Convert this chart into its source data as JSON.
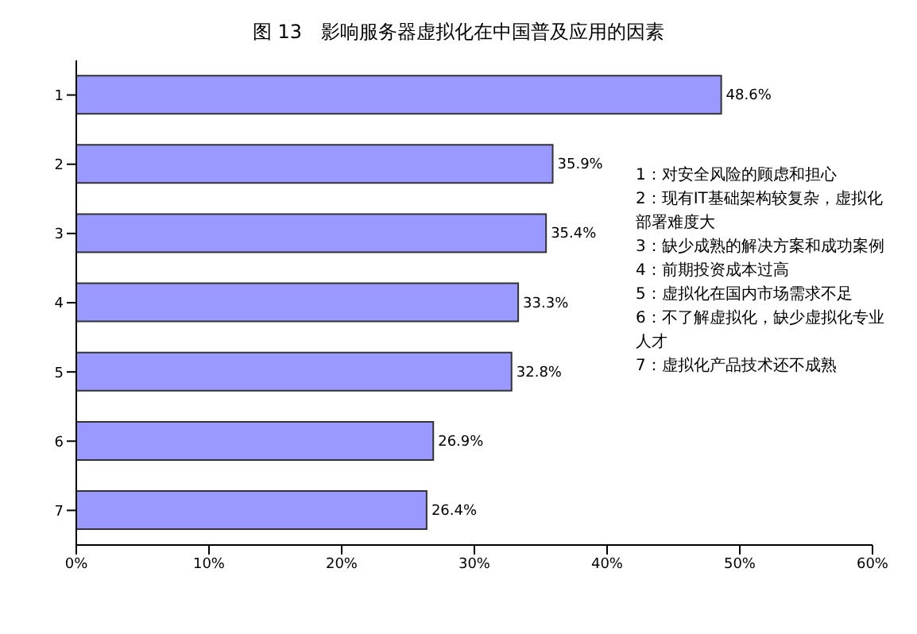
{
  "chart_data": {
    "type": "bar",
    "orientation": "horizontal",
    "title": "图 13　影响服务器虚拟化在中国普及应用的因素",
    "categories": [
      "1",
      "2",
      "3",
      "4",
      "5",
      "6",
      "7"
    ],
    "values": [
      48.6,
      35.9,
      35.4,
      33.3,
      32.8,
      26.9,
      26.4
    ],
    "value_labels": [
      "48.6%",
      "35.9%",
      "35.4%",
      "33.3%",
      "32.8%",
      "26.9%",
      "26.4%"
    ],
    "color": "#9999ff",
    "xlim": [
      0,
      60
    ],
    "xticks": [
      {
        "value": 0,
        "label": "0%"
      },
      {
        "value": 10,
        "label": "10%"
      },
      {
        "value": 20,
        "label": "20%"
      },
      {
        "value": 30,
        "label": "30%"
      },
      {
        "value": 40,
        "label": "40%"
      },
      {
        "value": 50,
        "label": "50%"
      },
      {
        "value": 60,
        "label": "60%"
      }
    ],
    "annotations": [
      "1：对安全风险的顾虑和担心",
      "2：现有IT基础架构较复杂，虚拟化部署难度大",
      "3：缺少成熟的解决方案和成功案例",
      "4：前期投资成本过高",
      "5：虚拟化在国内市场需求不足",
      "6：不了解虚拟化，缺少虚拟化专业人才",
      "7：虚拟化产品技术还不成熟"
    ]
  }
}
